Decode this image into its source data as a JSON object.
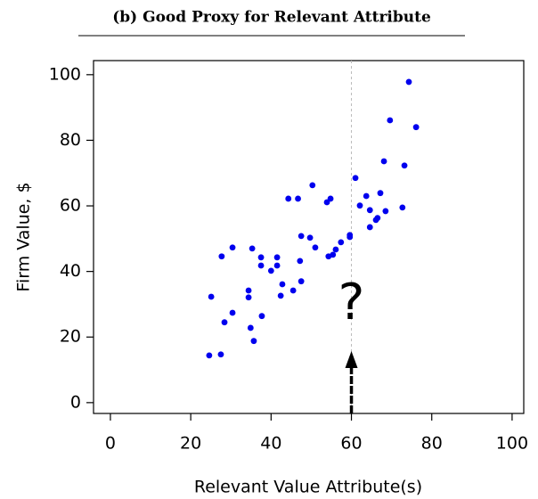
{
  "chart_data": {
    "type": "scatter",
    "title": "(b) Good Proxy for Relevant Attribute",
    "x_label": "Relevant Value Attribute(s)",
    "y_label": "Firm Value, $",
    "annotation": "?",
    "reference_x": 60,
    "color": "#0000ee",
    "xlim": [
      -4.2,
      102.9
    ],
    "ylim": [
      -3.3,
      104.3
    ],
    "xticks": [
      0,
      20,
      40,
      60,
      80,
      100
    ],
    "yticks": [
      0,
      20,
      40,
      60,
      80,
      100
    ],
    "x": [
      24.6,
      27.5,
      25.1,
      28.4,
      30.4,
      27.7,
      30.4,
      34.4,
      34.4,
      35.3,
      34.9,
      35.7,
      37.7,
      37.5,
      37.5,
      40.0,
      41.5,
      41.5,
      42.4,
      42.8,
      45.5,
      47.5,
      44.3,
      46.7,
      47.2,
      47.5,
      49.7,
      50.3,
      51.0,
      53.9,
      54.8,
      54.3,
      55.4,
      56.1,
      57.4,
      59.6,
      59.6,
      61.0,
      62.1,
      63.7,
      64.6,
      64.6,
      66.1,
      66.5,
      67.2,
      68.1,
      68.5,
      69.6,
      72.7,
      73.2,
      74.3,
      76.1
    ],
    "values": [
      14.4,
      14.7,
      32.3,
      24.5,
      27.4,
      44.6,
      47.3,
      32.1,
      34.2,
      47.0,
      22.8,
      18.8,
      26.4,
      44.3,
      41.8,
      40.2,
      44.3,
      41.8,
      32.6,
      36.1,
      34.2,
      37.0,
      62.2,
      62.2,
      43.2,
      50.8,
      50.3,
      66.3,
      47.3,
      61.1,
      62.2,
      44.6,
      45.1,
      46.7,
      48.9,
      50.5,
      51.1,
      68.5,
      60.1,
      63.0,
      58.7,
      53.5,
      55.7,
      56.3,
      63.9,
      73.6,
      58.4,
      86.1,
      59.5,
      72.3,
      97.8,
      84.0
    ]
  }
}
